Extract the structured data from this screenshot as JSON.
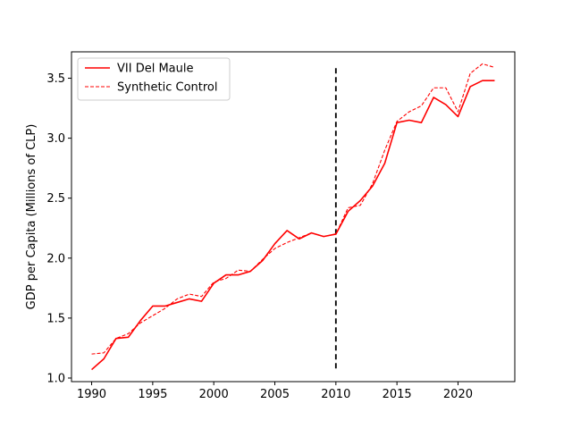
{
  "chart_data": {
    "type": "line",
    "xlabel": "",
    "ylabel": "GDP per Capita (Millions of CLP)",
    "xlim": [
      1988.35,
      2024.65
    ],
    "ylim": [
      0.97,
      3.72
    ],
    "xticks": [
      1990,
      1995,
      2000,
      2005,
      2010,
      2015,
      2020
    ],
    "yticks": [
      1.0,
      1.5,
      2.0,
      2.5,
      3.0,
      3.5
    ],
    "grid": false,
    "legend_position": "upper-left",
    "x": [
      1990,
      1991,
      1992,
      1993,
      1994,
      1995,
      1996,
      1997,
      1998,
      1999,
      2000,
      2001,
      2002,
      2003,
      2004,
      2005,
      2006,
      2007,
      2008,
      2009,
      2010,
      2011,
      2012,
      2013,
      2014,
      2015,
      2016,
      2017,
      2018,
      2019,
      2020,
      2021,
      2022,
      2023
    ],
    "series": [
      {
        "name": "VII Del Maule",
        "style": "solid",
        "color": "#ff0000",
        "values": [
          1.07,
          1.16,
          1.33,
          1.34,
          1.48,
          1.6,
          1.6,
          1.63,
          1.66,
          1.64,
          1.79,
          1.86,
          1.86,
          1.89,
          1.98,
          2.12,
          2.23,
          2.16,
          2.21,
          2.18,
          2.2,
          2.39,
          2.48,
          2.6,
          2.79,
          3.13,
          3.15,
          3.13,
          3.34,
          3.28,
          3.18,
          3.43,
          3.48,
          3.48
        ]
      },
      {
        "name": "Synthetic Control",
        "style": "dashed",
        "color": "#ff0000",
        "values": [
          1.2,
          1.21,
          1.33,
          1.37,
          1.46,
          1.52,
          1.58,
          1.66,
          1.7,
          1.68,
          1.8,
          1.83,
          1.9,
          1.89,
          1.99,
          2.08,
          2.13,
          2.17,
          2.21,
          2.18,
          2.2,
          2.42,
          2.44,
          2.62,
          2.9,
          3.14,
          3.22,
          3.27,
          3.42,
          3.42,
          3.22,
          3.54,
          3.62,
          3.59
        ]
      }
    ],
    "vline": {
      "x": 2010,
      "ymin": 1.08,
      "ymax": 3.6,
      "style": "dashed",
      "color": "#000000"
    }
  }
}
